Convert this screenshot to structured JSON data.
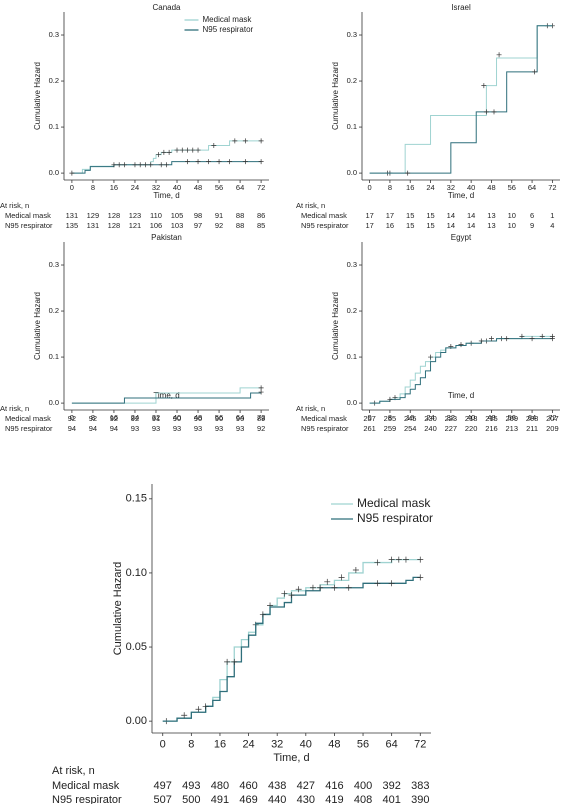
{
  "chart_data": [
    {
      "type": "step",
      "title": "Canada",
      "xlabel": "Time, d",
      "ylabel": "Cumulative Hazard",
      "xlim": [
        -3,
        75
      ],
      "ylim": [
        -0.015,
        0.35
      ],
      "xticks": [
        0,
        8,
        16,
        24,
        32,
        40,
        48,
        56,
        64,
        72
      ],
      "yticks": [
        {
          "value": 0,
          "label": "0.0"
        },
        0.1,
        0.2,
        0.3
      ],
      "legend": "upper center",
      "at_risk_label": "At risk, n",
      "series": [
        {
          "name": "Medical mask",
          "color": "#9fd3d1",
          "x": [
            0,
            4,
            7,
            16,
            30,
            31,
            32,
            34,
            38,
            52,
            60,
            72
          ],
          "values": [
            0,
            0.008,
            0.015,
            0.018,
            0.025,
            0.032,
            0.04,
            0.045,
            0.05,
            0.06,
            0.07,
            0.07
          ],
          "censored_x": [
            33,
            35,
            37,
            40,
            42,
            44,
            46,
            48,
            54,
            62,
            66,
            72
          ],
          "censored_values": [
            0.04,
            0.045,
            0.045,
            0.05,
            0.05,
            0.05,
            0.05,
            0.05,
            0.06,
            0.07,
            0.07,
            0.07
          ],
          "at_risk": [
            131,
            129,
            128,
            123,
            110,
            105,
            98,
            91,
            88,
            86
          ]
        },
        {
          "name": "N95 respirator",
          "color": "#2f6f7b",
          "x": [
            0,
            5,
            7,
            16,
            38,
            72
          ],
          "values": [
            0,
            0.006,
            0.014,
            0.018,
            0.025,
            0.025
          ],
          "censored_x": [
            0,
            16,
            18,
            20,
            24,
            26,
            28,
            30,
            34,
            36,
            44,
            48,
            52,
            56,
            60,
            66,
            72
          ],
          "censored_values": [
            0,
            0.018,
            0.018,
            0.018,
            0.018,
            0.018,
            0.018,
            0.018,
            0.018,
            0.018,
            0.025,
            0.025,
            0.025,
            0.025,
            0.025,
            0.025,
            0.025
          ],
          "at_risk": [
            135,
            131,
            128,
            121,
            106,
            103,
            97,
            92,
            88,
            85
          ]
        }
      ]
    },
    {
      "type": "step",
      "title": "Israel",
      "xlabel": "Time, d",
      "ylabel": "Cumulative Hazard",
      "xlim": [
        -3,
        75
      ],
      "ylim": [
        -0.015,
        0.35
      ],
      "xticks": [
        0,
        8,
        16,
        24,
        32,
        40,
        48,
        56,
        64,
        72
      ],
      "yticks": [
        {
          "value": 0,
          "label": "0.0"
        },
        0.1,
        0.2,
        0.3
      ],
      "at_risk_label": "At risk, n",
      "series": [
        {
          "name": "Medical mask",
          "color": "#9fd3d1",
          "x": [
            0,
            14,
            24,
            46,
            50,
            66,
            72
          ],
          "values": [
            0,
            0.0625,
            0.125,
            0.19,
            0.25,
            0.32,
            0.32
          ],
          "censored_x": [
            7,
            8,
            45,
            51,
            70,
            72
          ],
          "censored_values": [
            0,
            0,
            0.19,
            0.257,
            0.32,
            0.32
          ],
          "at_risk": [
            17,
            17,
            15,
            15,
            14,
            14,
            13,
            10,
            6,
            1
          ]
        },
        {
          "name": "N95 respirator",
          "color": "#2f6f7b",
          "x": [
            0,
            32,
            42,
            54,
            66,
            72
          ],
          "values": [
            0,
            0.066,
            0.133,
            0.22,
            0.32,
            0.32
          ],
          "censored_x": [
            15,
            46,
            49,
            65
          ],
          "censored_values": [
            0,
            0.133,
            0.133,
            0.22
          ],
          "at_risk": [
            17,
            16,
            15,
            15,
            14,
            14,
            13,
            10,
            9,
            4
          ]
        }
      ]
    },
    {
      "type": "step",
      "title": "Pakistan",
      "xlabel": "Time, d",
      "ylabel": "Cumulative Hazard",
      "xlim": [
        -3,
        75
      ],
      "ylim": [
        -0.015,
        0.35
      ],
      "xticks": [
        0,
        8,
        16,
        24,
        32,
        40,
        48,
        56,
        64,
        72
      ],
      "yticks": [
        {
          "value": 0,
          "label": "0.0"
        },
        0.1,
        0.2,
        0.3
      ],
      "at_risk_label": "At risk, n",
      "series": [
        {
          "name": "Medical mask",
          "color": "#9fd3d1",
          "x": [
            0,
            32,
            64,
            72
          ],
          "values": [
            0,
            0.022,
            0.033,
            0.033
          ],
          "censored_x": [
            72
          ],
          "censored_values": [
            0.033
          ],
          "at_risk": [
            92,
            92,
            92,
            92,
            91,
            90,
            90,
            90,
            90,
            89
          ]
        },
        {
          "name": "N95 respirator",
          "color": "#2f6f7b",
          "x": [
            0,
            20,
            68,
            72
          ],
          "values": [
            0,
            0.011,
            0.022,
            0.022
          ],
          "censored_x": [
            72
          ],
          "censored_values": [
            0.024
          ],
          "at_risk": [
            94,
            94,
            94,
            93,
            93,
            93,
            93,
            93,
            93,
            92
          ]
        }
      ]
    },
    {
      "type": "step",
      "title": "Egypt",
      "xlabel": "Time, d",
      "ylabel": "Cumulative Hazard",
      "xlim": [
        -3,
        75
      ],
      "ylim": [
        -0.015,
        0.35
      ],
      "xticks": [
        0,
        8,
        16,
        24,
        32,
        40,
        48,
        56,
        64,
        72
      ],
      "yticks": [
        {
          "value": 0,
          "label": "0.0"
        },
        0.1,
        0.2,
        0.3
      ],
      "at_risk_label": "At risk, n",
      "series": [
        {
          "name": "Medical mask",
          "color": "#9fd3d1",
          "x": [
            0,
            4,
            8,
            10,
            12,
            14,
            16,
            18,
            20,
            22,
            24,
            26,
            28,
            30,
            34,
            38,
            44,
            50,
            60,
            72
          ],
          "values": [
            0,
            0.004,
            0.008,
            0.012,
            0.02,
            0.035,
            0.05,
            0.065,
            0.08,
            0.09,
            0.1,
            0.11,
            0.115,
            0.12,
            0.125,
            0.13,
            0.135,
            0.14,
            0.145,
            0.145
          ],
          "censored_x": [
            2,
            10,
            24,
            32,
            40,
            46,
            52,
            60,
            68,
            72
          ],
          "censored_values": [
            0,
            0.012,
            0.1,
            0.123,
            0.13,
            0.135,
            0.14,
            0.145,
            0.145,
            0.145
          ],
          "at_risk": [
            257,
            255,
            245,
            230,
            223,
            218,
            215,
            209,
            208,
            207
          ]
        },
        {
          "name": "N95 respirator",
          "color": "#2f6f7b",
          "x": [
            0,
            4,
            8,
            12,
            14,
            16,
            18,
            20,
            22,
            24,
            26,
            28,
            30,
            34,
            38,
            44,
            50,
            60,
            72
          ],
          "values": [
            0,
            0.004,
            0.008,
            0.012,
            0.02,
            0.03,
            0.04,
            0.055,
            0.07,
            0.09,
            0.1,
            0.11,
            0.12,
            0.125,
            0.13,
            0.135,
            0.14,
            0.14,
            0.14
          ],
          "censored_x": [
            8,
            36,
            44,
            48,
            54,
            64,
            72
          ],
          "censored_values": [
            0.008,
            0.127,
            0.135,
            0.14,
            0.14,
            0.14,
            0.14
          ],
          "at_risk": [
            261,
            259,
            254,
            240,
            227,
            220,
            216,
            213,
            211,
            209
          ]
        }
      ]
    },
    {
      "type": "step",
      "xlabel": "Time, d",
      "ylabel": "Cumulative Hazard",
      "xlim": [
        -3,
        75
      ],
      "ylim": [
        -0.008,
        0.16
      ],
      "xticks": [
        0,
        8,
        16,
        24,
        32,
        40,
        48,
        56,
        64,
        72
      ],
      "yticks": [
        {
          "value": 0,
          "label": "0.00"
        },
        {
          "value": 0.05,
          "label": "0.05"
        },
        {
          "value": 0.1,
          "label": "0.10"
        },
        {
          "value": 0.15,
          "label": "0.15"
        }
      ],
      "legend": "upper right",
      "at_risk_label": "At risk, n",
      "series": [
        {
          "name": "Medical mask",
          "color": "#9fd3d1",
          "x": [
            0,
            4,
            8,
            12,
            14,
            16,
            18,
            20,
            22,
            24,
            26,
            28,
            30,
            32,
            34,
            36,
            40,
            44,
            48,
            52,
            56,
            60,
            64,
            68,
            72
          ],
          "values": [
            0,
            0.002,
            0.006,
            0.01,
            0.016,
            0.028,
            0.04,
            0.05,
            0.055,
            0.06,
            0.065,
            0.072,
            0.078,
            0.083,
            0.086,
            0.088,
            0.09,
            0.092,
            0.095,
            0.1,
            0.107,
            0.107,
            0.109,
            0.109,
            0.109
          ],
          "censored_x": [
            1,
            10,
            18,
            26,
            30,
            34,
            38,
            42,
            46,
            50,
            54,
            60,
            64,
            66,
            68,
            72
          ],
          "censored_values": [
            0,
            0.008,
            0.04,
            0.065,
            0.078,
            0.086,
            0.089,
            0.09,
            0.094,
            0.097,
            0.102,
            0.107,
            0.109,
            0.109,
            0.109,
            0.109
          ],
          "at_risk": [
            497,
            493,
            480,
            460,
            438,
            427,
            416,
            400,
            392,
            383
          ]
        },
        {
          "name": "N95 respirator",
          "color": "#2f6f7b",
          "x": [
            0,
            4,
            8,
            12,
            14,
            16,
            18,
            20,
            22,
            24,
            26,
            28,
            30,
            34,
            36,
            40,
            44,
            56,
            68,
            70,
            72
          ],
          "values": [
            0,
            0.002,
            0.006,
            0.01,
            0.014,
            0.02,
            0.03,
            0.04,
            0.05,
            0.058,
            0.066,
            0.072,
            0.077,
            0.08,
            0.085,
            0.088,
            0.09,
            0.093,
            0.095,
            0.097,
            0.097
          ],
          "censored_x": [
            6,
            12,
            20,
            28,
            36,
            44,
            48,
            52,
            60,
            64,
            72
          ],
          "censored_values": [
            0.004,
            0.01,
            0.04,
            0.072,
            0.085,
            0.09,
            0.09,
            0.09,
            0.093,
            0.093,
            0.097
          ],
          "at_risk": [
            507,
            500,
            491,
            469,
            440,
            430,
            419,
            408,
            401,
            390
          ]
        }
      ]
    }
  ]
}
